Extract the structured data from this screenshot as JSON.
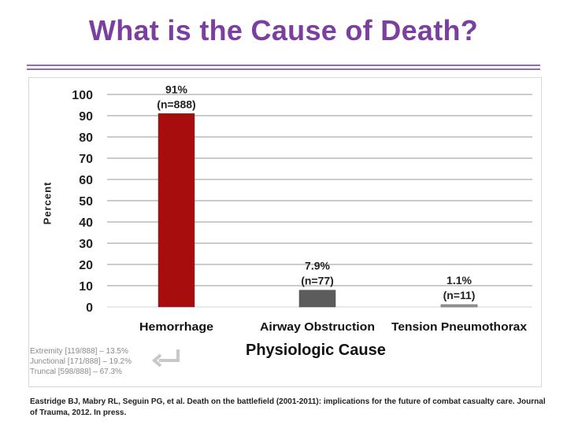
{
  "slide": {
    "title": "What is the Cause of Death?",
    "note_lines": [
      "Extremity [119/888] – 13.5%",
      "Junctional [171/888] – 19.2%",
      "Truncal [598/888] – 67.3%"
    ],
    "citation": "Eastridge BJ, Mabry RL, Seguin PG, et al. Death on the battlefield (2001-2011): implications for the future of combat casualty care. Journal of Trauma, 2012. In press.",
    "return_icon": "return-arrow-icon"
  },
  "chart_data": {
    "type": "bar",
    "title": "",
    "xlabel": "Physiologic  Cause",
    "ylabel": "Percent",
    "ylim": [
      0,
      100
    ],
    "yticks": [
      0,
      10,
      20,
      30,
      40,
      50,
      60,
      70,
      80,
      90,
      100
    ],
    "grid": true,
    "categories": [
      "Hemorrhage",
      "Airway Obstruction",
      "Tension Pneumothorax"
    ],
    "values": [
      91,
      7.9,
      1.1
    ],
    "labels": [
      [
        "91%",
        "(n=888)"
      ],
      [
        "7.9%",
        "(n=77)"
      ],
      [
        "1.1%",
        "(n=11)"
      ]
    ],
    "colors": [
      "#a80d0d",
      "#5c5c5c",
      "#9a9a9a"
    ]
  }
}
